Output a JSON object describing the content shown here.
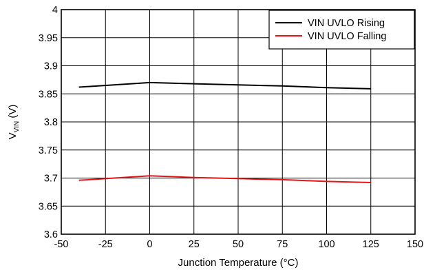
{
  "chart_data": {
    "type": "line",
    "xlabel": "Junction Temperature (°C)",
    "ylabel_main": "V",
    "ylabel_sub": "VIN",
    "ylabel_unit": " (V)",
    "xlim": [
      -50,
      150
    ],
    "ylim": [
      3.6,
      4.0
    ],
    "x_ticks": [
      -50,
      -25,
      0,
      25,
      50,
      75,
      100,
      125,
      150
    ],
    "x_tick_labels": [
      "-50",
      "-25",
      "0",
      "25",
      "50",
      "75",
      "100",
      "125",
      "150"
    ],
    "y_ticks": [
      3.6,
      3.65,
      3.7,
      3.75,
      3.8,
      3.85,
      3.9,
      3.95,
      4.0
    ],
    "y_tick_labels": [
      "3.6",
      "3.65",
      "3.7",
      "3.75",
      "3.8",
      "3.85",
      "3.9",
      "3.95",
      "4"
    ],
    "grid": true,
    "legend_position": "top-right",
    "series": [
      {
        "name": "VIN UVLO Rising",
        "color": "#000000",
        "x": [
          -40,
          0,
          25,
          50,
          75,
          100,
          125
        ],
        "y": [
          3.862,
          3.87,
          3.868,
          3.866,
          3.864,
          3.861,
          3.859
        ]
      },
      {
        "name": "VIN UVLO Falling",
        "color": "#e8141b",
        "x": [
          -40,
          0,
          25,
          50,
          75,
          100,
          125
        ],
        "y": [
          3.696,
          3.704,
          3.701,
          3.699,
          3.697,
          3.694,
          3.692
        ]
      }
    ]
  }
}
